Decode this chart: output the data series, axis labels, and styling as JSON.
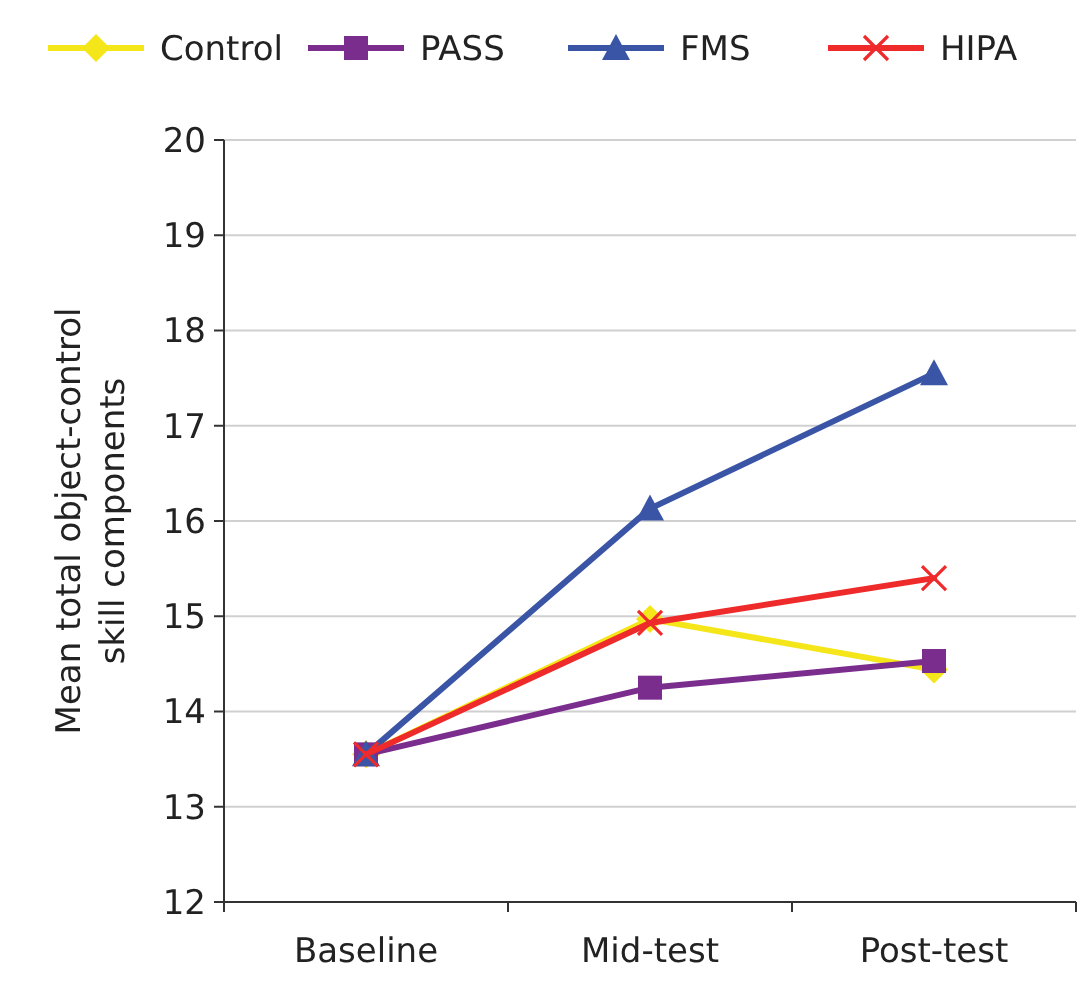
{
  "chart_data": {
    "type": "line",
    "ylabel": "Mean total object-control skill components",
    "categories": [
      "Baseline",
      "Mid-test",
      "Post-test"
    ],
    "ylim": [
      12,
      20
    ],
    "yticks": [
      12,
      13,
      14,
      15,
      16,
      17,
      18,
      19,
      20
    ],
    "grid": "y",
    "legend": "top",
    "line_style": "solid",
    "series": [
      {
        "name": "Control",
        "color": "#f5e61a",
        "marker": "diamond",
        "values": [
          13.55,
          14.97,
          14.44
        ]
      },
      {
        "name": "PASS",
        "color": "#7b2d8e",
        "marker": "square",
        "values": [
          13.55,
          14.25,
          14.53
        ]
      },
      {
        "name": "FMS",
        "color": "#3a55a5",
        "marker": "triangle",
        "values": [
          13.55,
          16.13,
          17.55
        ]
      },
      {
        "name": "HIPA",
        "color": "#ee2a2a",
        "marker": "cross",
        "values": [
          13.55,
          14.93,
          15.4
        ]
      }
    ]
  }
}
